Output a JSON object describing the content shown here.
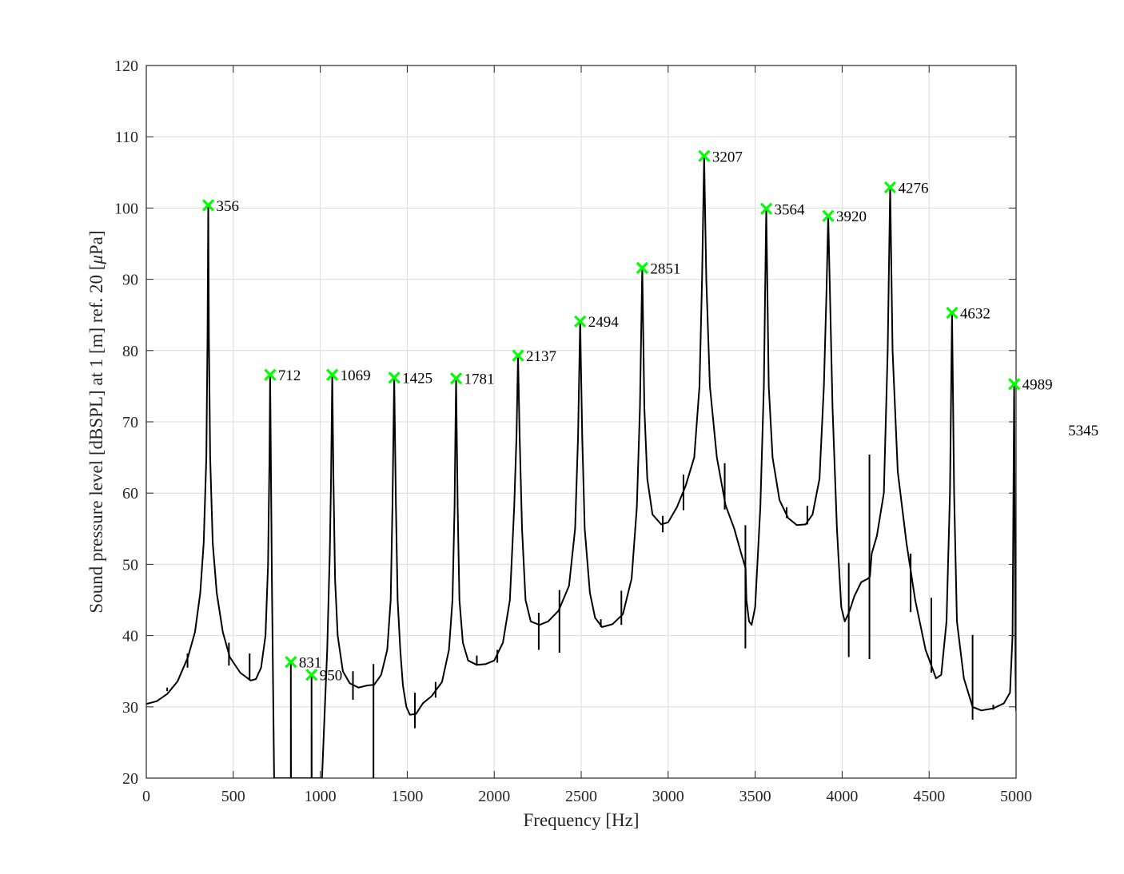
{
  "chart_data": {
    "type": "line",
    "xlabel": "Frequency [Hz]",
    "ylabel": "Sound pressure level [dBSPL] at 1 [m] ref. 20 [",
    "ylabel_unit_mu": "μ",
    "ylabel_unit_rest": "Pa]",
    "xlim": [
      0,
      5000
    ],
    "ylim": [
      20,
      120
    ],
    "x_ticks": [
      "0",
      "500",
      "1000",
      "1500",
      "2000",
      "2500",
      "3000",
      "3500",
      "4000",
      "4500",
      "5000"
    ],
    "y_ticks": [
      "20",
      "30",
      "40",
      "50",
      "60",
      "70",
      "80",
      "90",
      "100",
      "110",
      "120"
    ],
    "grid": true,
    "line_color": "#000000",
    "marker_color": "#00ff00",
    "marker": "x",
    "peaks": [
      {
        "x": 356,
        "y": 100.4,
        "label": "356"
      },
      {
        "x": 712,
        "y": 76.6,
        "label": "712"
      },
      {
        "x": 831,
        "y": 36.3,
        "label": "831"
      },
      {
        "x": 950,
        "y": 34.5,
        "label": "950"
      },
      {
        "x": 1069,
        "y": 76.6,
        "label": "1069"
      },
      {
        "x": 1425,
        "y": 76.2,
        "label": "1425"
      },
      {
        "x": 1781,
        "y": 76.1,
        "label": "1781"
      },
      {
        "x": 2137,
        "y": 79.3,
        "label": "2137"
      },
      {
        "x": 2494,
        "y": 84.1,
        "label": "2494"
      },
      {
        "x": 2851,
        "y": 91.6,
        "label": "2851"
      },
      {
        "x": 3207,
        "y": 107.3,
        "label": "3207"
      },
      {
        "x": 3564,
        "y": 99.9,
        "label": "3564"
      },
      {
        "x": 3920,
        "y": 98.9,
        "label": "3920"
      },
      {
        "x": 4276,
        "y": 102.9,
        "label": "4276"
      },
      {
        "x": 4632,
        "y": 85.3,
        "label": "4632"
      },
      {
        "x": 4989,
        "y": 75.3,
        "label": "4989"
      }
    ],
    "offscreen_label": {
      "x": 5345,
      "y": 68.9,
      "label": "5345"
    },
    "series": [
      {
        "values": [
          [
            0,
            30.4
          ],
          [
            60,
            30.8
          ],
          [
            120,
            31.8
          ],
          [
            180,
            33.6
          ],
          [
            240,
            37
          ],
          [
            280,
            40.5
          ],
          [
            310,
            46
          ],
          [
            330,
            53
          ],
          [
            345,
            65
          ],
          [
            352,
            82
          ],
          [
            356,
            100.4
          ],
          [
            360,
            82
          ],
          [
            367,
            65
          ],
          [
            382,
            53
          ],
          [
            405,
            46
          ],
          [
            440,
            40.5
          ],
          [
            480,
            37
          ],
          [
            540,
            34.8
          ],
          [
            600,
            33.7
          ],
          [
            630,
            33.9
          ],
          [
            660,
            35.5
          ],
          [
            685,
            40
          ],
          [
            700,
            50
          ],
          [
            708,
            65
          ],
          [
            712,
            76.6
          ],
          [
            716,
            65
          ],
          [
            722,
            48
          ],
          [
            735,
            20
          ],
          [
            831,
            20
          ],
          [
            831,
            36.3
          ],
          [
            832,
            20
          ],
          [
            950,
            20
          ],
          [
            950,
            34.5
          ],
          [
            951,
            20
          ],
          [
            1010,
            20
          ],
          [
            1040,
            38
          ],
          [
            1055,
            52
          ],
          [
            1062,
            62
          ],
          [
            1069,
            76.6
          ],
          [
            1076,
            62
          ],
          [
            1085,
            48
          ],
          [
            1100,
            40
          ],
          [
            1130,
            35
          ],
          [
            1170,
            33.3
          ],
          [
            1220,
            32.7
          ],
          [
            1270,
            33
          ],
          [
            1310,
            33.1
          ],
          [
            1350,
            34.5
          ],
          [
            1385,
            38
          ],
          [
            1405,
            45
          ],
          [
            1415,
            58
          ],
          [
            1425,
            76.2
          ],
          [
            1435,
            58
          ],
          [
            1445,
            45
          ],
          [
            1460,
            38
          ],
          [
            1475,
            33
          ],
          [
            1495,
            30
          ],
          [
            1515,
            28.9
          ],
          [
            1550,
            29
          ],
          [
            1590,
            30.5
          ],
          [
            1640,
            31.5
          ],
          [
            1700,
            33.5
          ],
          [
            1740,
            38
          ],
          [
            1760,
            45
          ],
          [
            1772,
            58
          ],
          [
            1781,
            76.1
          ],
          [
            1790,
            58
          ],
          [
            1800,
            45
          ],
          [
            1820,
            39
          ],
          [
            1850,
            36.5
          ],
          [
            1900,
            35.9
          ],
          [
            1950,
            36
          ],
          [
            2000,
            36.5
          ],
          [
            2050,
            39
          ],
          [
            2090,
            45
          ],
          [
            2115,
            58
          ],
          [
            2128,
            68
          ],
          [
            2137,
            79.3
          ],
          [
            2146,
            68
          ],
          [
            2160,
            55
          ],
          [
            2180,
            45
          ],
          [
            2210,
            42
          ],
          [
            2260,
            41.5
          ],
          [
            2310,
            42
          ],
          [
            2370,
            43.5
          ],
          [
            2430,
            47
          ],
          [
            2465,
            55
          ],
          [
            2482,
            68
          ],
          [
            2494,
            84.1
          ],
          [
            2506,
            68
          ],
          [
            2520,
            55
          ],
          [
            2550,
            46
          ],
          [
            2580,
            42.5
          ],
          [
            2620,
            41.2
          ],
          [
            2680,
            41.6
          ],
          [
            2740,
            43
          ],
          [
            2790,
            48
          ],
          [
            2820,
            58
          ],
          [
            2838,
            72
          ],
          [
            2851,
            91.6
          ],
          [
            2863,
            72
          ],
          [
            2880,
            62
          ],
          [
            2910,
            57
          ],
          [
            2960,
            55.6
          ],
          [
            3000,
            55.9
          ],
          [
            3050,
            58
          ],
          [
            3100,
            61
          ],
          [
            3150,
            65
          ],
          [
            3180,
            75
          ],
          [
            3195,
            90
          ],
          [
            3207,
            107.3
          ],
          [
            3219,
            90
          ],
          [
            3240,
            75
          ],
          [
            3280,
            65
          ],
          [
            3330,
            58.3
          ],
          [
            3380,
            55
          ],
          [
            3420,
            51.5
          ],
          [
            3445,
            49.5
          ],
          [
            3450,
            45
          ],
          [
            3465,
            42
          ],
          [
            3480,
            41.5
          ],
          [
            3500,
            44
          ],
          [
            3530,
            58
          ],
          [
            3550,
            75
          ],
          [
            3564,
            99.9
          ],
          [
            3578,
            75
          ],
          [
            3600,
            65
          ],
          [
            3640,
            59
          ],
          [
            3690,
            56.5
          ],
          [
            3740,
            55.5
          ],
          [
            3790,
            55.6
          ],
          [
            3830,
            57
          ],
          [
            3870,
            62
          ],
          [
            3895,
            75
          ],
          [
            3910,
            88
          ],
          [
            3920,
            98.9
          ],
          [
            3930,
            88
          ],
          [
            3945,
            72
          ],
          [
            3970,
            55
          ],
          [
            3995,
            44
          ],
          [
            4015,
            42
          ],
          [
            4035,
            43
          ],
          [
            4050,
            44
          ],
          [
            4070,
            45.5
          ],
          [
            4110,
            47.5
          ],
          [
            4150,
            48
          ],
          [
            4160,
            48.3
          ],
          [
            4170,
            51.5
          ],
          [
            4200,
            54
          ],
          [
            4240,
            60
          ],
          [
            4262,
            80
          ],
          [
            4276,
            102.9
          ],
          [
            4290,
            80
          ],
          [
            4320,
            63
          ],
          [
            4370,
            53
          ],
          [
            4420,
            45
          ],
          [
            4480,
            38
          ],
          [
            4540,
            34
          ],
          [
            4570,
            34.5
          ],
          [
            4600,
            42
          ],
          [
            4620,
            60
          ],
          [
            4632,
            85.3
          ],
          [
            4644,
            60
          ],
          [
            4660,
            42
          ],
          [
            4700,
            34
          ],
          [
            4750,
            30
          ],
          [
            4800,
            29.5
          ],
          [
            4870,
            29.8
          ],
          [
            4930,
            30.5
          ],
          [
            4965,
            32
          ],
          [
            4980,
            40
          ],
          [
            4989,
            75.3
          ],
          [
            4994,
            50
          ],
          [
            4997,
            35
          ],
          [
            5000,
            29.5
          ]
        ]
      }
    ],
    "spikes": [
      [
        120,
        32.2,
        32.7
      ],
      [
        237,
        35.5,
        37.5
      ],
      [
        475,
        35.8,
        39
      ],
      [
        594,
        33.7,
        37.5
      ],
      [
        1188,
        31,
        35
      ],
      [
        1306,
        20,
        36
      ],
      [
        1544,
        27,
        32
      ],
      [
        1663,
        31.3,
        33.5
      ],
      [
        1900,
        35.8,
        37.2
      ],
      [
        2018,
        36.2,
        38
      ],
      [
        2256,
        38,
        43.2
      ],
      [
        2375,
        37.6,
        46.4
      ],
      [
        2613,
        41.2,
        42.3
      ],
      [
        2731,
        41.5,
        46.3
      ],
      [
        2969,
        54.5,
        56.8
      ],
      [
        3088,
        57.6,
        62.6
      ],
      [
        3325,
        57.7,
        64.2
      ],
      [
        3444,
        38.2,
        55.5
      ],
      [
        3681,
        56.5,
        58
      ],
      [
        3800,
        55.6,
        58.2
      ],
      [
        4038,
        37,
        50.2
      ],
      [
        4157,
        36.7,
        65.4
      ],
      [
        4394,
        43.3,
        51.5
      ],
      [
        4513,
        34.8,
        45.3
      ],
      [
        4750,
        28.2,
        40.1
      ],
      [
        4869,
        29.6,
        30.3
      ]
    ]
  }
}
